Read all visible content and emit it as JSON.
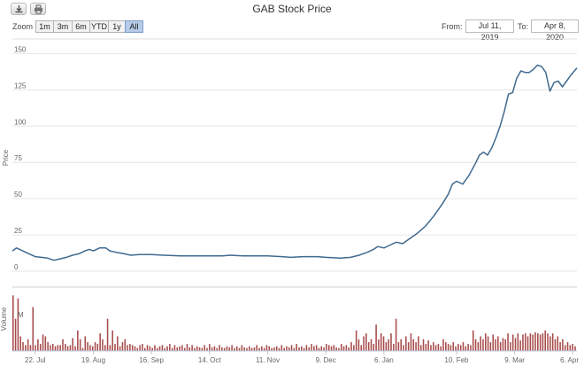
{
  "toolbar": {
    "download_icon": "download-icon",
    "print_icon": "print-icon"
  },
  "zoom": {
    "label": "Zoom",
    "buttons": [
      "1m",
      "3m",
      "6m",
      "YTD",
      "1y",
      "All"
    ],
    "active": "All"
  },
  "range": {
    "from_label": "From:",
    "from_value": "Jul 11, 2019",
    "to_label": "To:",
    "to_value": "Apr 8, 2020"
  },
  "chart_data": {
    "type": "line",
    "title": "GAB Stock Price",
    "ylabel": "Price",
    "ylim": [
      0,
      160
    ],
    "yticks": [
      0,
      25,
      50,
      75,
      100,
      125,
      150
    ],
    "xrange": [
      "2019-07-11",
      "2020-04-08"
    ],
    "xticks": [
      {
        "date": "2019-07-22",
        "label": "22. Jul"
      },
      {
        "date": "2019-08-19",
        "label": "19. Aug"
      },
      {
        "date": "2019-09-16",
        "label": "16. Sep"
      },
      {
        "date": "2019-10-14",
        "label": "14. Oct"
      },
      {
        "date": "2019-11-11",
        "label": "11. Nov"
      },
      {
        "date": "2019-12-09",
        "label": "9. Dec"
      },
      {
        "date": "2020-01-06",
        "label": "6. Jan"
      },
      {
        "date": "2020-02-10",
        "label": "10. Feb"
      },
      {
        "date": "2020-03-09",
        "label": "9. Mar"
      },
      {
        "date": "2020-04-06",
        "label": "6. Apr"
      }
    ],
    "grid": true,
    "series": [
      {
        "color": "#3f6a8f",
        "points": [
          [
            "2019-07-11",
            14
          ],
          [
            "2019-07-13",
            16
          ],
          [
            "2019-07-16",
            14
          ],
          [
            "2019-07-19",
            12
          ],
          [
            "2019-07-22",
            10
          ],
          [
            "2019-07-25",
            9.5
          ],
          [
            "2019-07-28",
            9
          ],
          [
            "2019-07-31",
            7.5
          ],
          [
            "2019-08-03",
            8.5
          ],
          [
            "2019-08-06",
            9.5
          ],
          [
            "2019-08-09",
            11
          ],
          [
            "2019-08-12",
            12
          ],
          [
            "2019-08-15",
            14
          ],
          [
            "2019-08-17",
            15
          ],
          [
            "2019-08-19",
            14
          ],
          [
            "2019-08-22",
            16
          ],
          [
            "2019-08-25",
            16
          ],
          [
            "2019-08-27",
            14
          ],
          [
            "2019-08-30",
            13
          ],
          [
            "2019-09-03",
            12
          ],
          [
            "2019-09-06",
            11
          ],
          [
            "2019-09-10",
            11.5
          ],
          [
            "2019-09-16",
            11.5
          ],
          [
            "2019-09-22",
            11
          ],
          [
            "2019-09-30",
            10.5
          ],
          [
            "2019-10-08",
            10.5
          ],
          [
            "2019-10-14",
            10.5
          ],
          [
            "2019-10-20",
            10.5
          ],
          [
            "2019-10-24",
            11
          ],
          [
            "2019-10-30",
            10.5
          ],
          [
            "2019-11-05",
            10.5
          ],
          [
            "2019-11-11",
            10.5
          ],
          [
            "2019-11-18",
            10
          ],
          [
            "2019-11-22",
            9.5
          ],
          [
            "2019-11-28",
            10
          ],
          [
            "2019-12-05",
            10
          ],
          [
            "2019-12-09",
            9.5
          ],
          [
            "2019-12-16",
            9
          ],
          [
            "2019-12-21",
            9.5
          ],
          [
            "2019-12-25",
            11
          ],
          [
            "2019-12-29",
            13
          ],
          [
            "2020-01-01",
            15
          ],
          [
            "2020-01-03",
            17
          ],
          [
            "2020-01-06",
            16
          ],
          [
            "2020-01-09",
            18
          ],
          [
            "2020-01-12",
            20
          ],
          [
            "2020-01-15",
            19
          ],
          [
            "2020-01-18",
            22
          ],
          [
            "2020-01-22",
            26
          ],
          [
            "2020-01-26",
            31
          ],
          [
            "2020-01-30",
            38
          ],
          [
            "2020-02-03",
            46
          ],
          [
            "2020-02-06",
            53
          ],
          [
            "2020-02-08",
            60
          ],
          [
            "2020-02-10",
            62
          ],
          [
            "2020-02-13",
            60
          ],
          [
            "2020-02-16",
            66
          ],
          [
            "2020-02-19",
            74
          ],
          [
            "2020-02-21",
            80
          ],
          [
            "2020-02-23",
            82
          ],
          [
            "2020-02-25",
            80
          ],
          [
            "2020-02-27",
            85
          ],
          [
            "2020-02-29",
            92
          ],
          [
            "2020-03-02",
            100
          ],
          [
            "2020-03-04",
            110
          ],
          [
            "2020-03-06",
            122
          ],
          [
            "2020-03-08",
            123
          ],
          [
            "2020-03-10",
            133
          ],
          [
            "2020-03-12",
            138
          ],
          [
            "2020-03-14",
            137
          ],
          [
            "2020-03-16",
            137
          ],
          [
            "2020-03-18",
            139
          ],
          [
            "2020-03-20",
            142
          ],
          [
            "2020-03-22",
            141
          ],
          [
            "2020-03-24",
            137
          ],
          [
            "2020-03-26",
            124
          ],
          [
            "2020-03-28",
            130
          ],
          [
            "2020-03-30",
            131
          ],
          [
            "2020-04-01",
            127
          ],
          [
            "2020-04-03",
            131
          ],
          [
            "2020-04-05",
            135
          ],
          [
            "2020-04-08",
            140
          ]
        ]
      }
    ],
    "volume": {
      "label": "Volume",
      "unit_label": "M",
      "color": "#a84b4b",
      "values": [
        0.95,
        0.55,
        0.9,
        0.25,
        0.15,
        0.1,
        0.2,
        0.1,
        0.75,
        0.1,
        0.2,
        0.12,
        0.28,
        0.25,
        0.15,
        0.1,
        0.12,
        0.08,
        0.1,
        0.1,
        0.2,
        0.12,
        0.08,
        0.1,
        0.22,
        0.08,
        0.35,
        0.2,
        0.05,
        0.25,
        0.15,
        0.1,
        0.08,
        0.15,
        0.12,
        0.3,
        0.2,
        0.1,
        0.55,
        0.1,
        0.35,
        0.12,
        0.25,
        0.08,
        0.15,
        0.2,
        0.1,
        0.12,
        0.1,
        0.08,
        0.05,
        0.1,
        0.12,
        0.05,
        0.1,
        0.08,
        0.05,
        0.1,
        0.05,
        0.08,
        0.1,
        0.05,
        0.08,
        0.12,
        0.05,
        0.1,
        0.06,
        0.08,
        0.1,
        0.05,
        0.12,
        0.06,
        0.1,
        0.05,
        0.08,
        0.06,
        0.05,
        0.1,
        0.05,
        0.12,
        0.06,
        0.08,
        0.05,
        0.1,
        0.06,
        0.05,
        0.08,
        0.06,
        0.1,
        0.05,
        0.08,
        0.05,
        0.1,
        0.06,
        0.05,
        0.08,
        0.05,
        0.06,
        0.1,
        0.05,
        0.08,
        0.05,
        0.1,
        0.08,
        0.05,
        0.06,
        0.08,
        0.05,
        0.1,
        0.05,
        0.08,
        0.06,
        0.1,
        0.05,
        0.12,
        0.06,
        0.08,
        0.05,
        0.1,
        0.06,
        0.12,
        0.08,
        0.1,
        0.05,
        0.08,
        0.06,
        0.12,
        0.1,
        0.08,
        0.1,
        0.06,
        0.05,
        0.12,
        0.08,
        0.1,
        0.06,
        0.15,
        0.1,
        0.35,
        0.2,
        0.1,
        0.25,
        0.3,
        0.15,
        0.2,
        0.12,
        0.45,
        0.2,
        0.3,
        0.25,
        0.15,
        0.2,
        0.3,
        0.12,
        0.55,
        0.15,
        0.2,
        0.1,
        0.25,
        0.15,
        0.3,
        0.2,
        0.15,
        0.25,
        0.1,
        0.2,
        0.12,
        0.18,
        0.1,
        0.15,
        0.1,
        0.12,
        0.08,
        0.2,
        0.15,
        0.12,
        0.1,
        0.15,
        0.08,
        0.12,
        0.1,
        0.15,
        0.08,
        0.12,
        0.1,
        0.35,
        0.2,
        0.15,
        0.25,
        0.2,
        0.3,
        0.25,
        0.15,
        0.28,
        0.2,
        0.25,
        0.15,
        0.22,
        0.2,
        0.3,
        0.15,
        0.28,
        0.22,
        0.3,
        0.18,
        0.28,
        0.3,
        0.25,
        0.3,
        0.28,
        0.32,
        0.3,
        0.28,
        0.3,
        0.35,
        0.3,
        0.25,
        0.3,
        0.2,
        0.25,
        0.15,
        0.2,
        0.1,
        0.15,
        0.1,
        0.12,
        0.08
      ]
    }
  }
}
